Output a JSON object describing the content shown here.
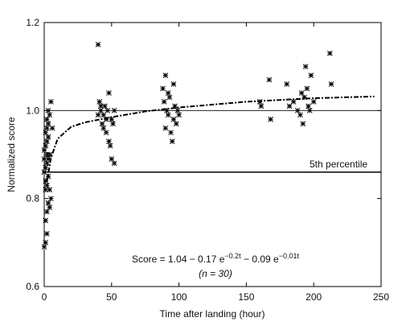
{
  "chart_data": {
    "type": "scatter",
    "xlabel": "Time after landing (hour)",
    "ylabel": "Normalized score",
    "xlim": [
      0,
      250
    ],
    "ylim": [
      0.6,
      1.2
    ],
    "xticks": [
      0,
      50,
      100,
      150,
      200,
      250
    ],
    "yticks": [
      0.6,
      0.8,
      {
        "value": 1,
        "label": "1.0"
      },
      1.2
    ],
    "hlines": [
      {
        "value": 1
      },
      {
        "value": 0.86,
        "label": "5th percentile"
      }
    ],
    "annotation": {
      "parts": [
        "Score = 1.04 − 0.17 e",
        "−0.2t",
        " − 0.09 e",
        "−0.01t"
      ],
      "note": "(n = 30)"
    },
    "series": [
      {
        "color": "#000000",
        "x": [
          0,
          1,
          2,
          1,
          2,
          3,
          4,
          5,
          1,
          2,
          3,
          0,
          1,
          2,
          3,
          4,
          0,
          1,
          2,
          3,
          1,
          2,
          3,
          2,
          4,
          3,
          5,
          6,
          1,
          4,
          0,
          2,
          40,
          40,
          41,
          42,
          43,
          44,
          45,
          46,
          47,
          48,
          48,
          49,
          50,
          50,
          51,
          52,
          52,
          46,
          44,
          42,
          88,
          89,
          90,
          90,
          91,
          92,
          93,
          94,
          95,
          96,
          97,
          98,
          99,
          100,
          92,
          96,
          160,
          161,
          167,
          168,
          180,
          182,
          185,
          188,
          190,
          191,
          192,
          193,
          194,
          195,
          196,
          197,
          198,
          200,
          212,
          213
        ],
        "values": [
          0.69,
          0.7,
          0.72,
          0.75,
          0.77,
          0.79,
          0.78,
          0.8,
          0.82,
          0.83,
          0.85,
          0.86,
          0.87,
          0.88,
          0.89,
          0.9,
          0.91,
          0.92,
          0.93,
          0.94,
          0.95,
          0.96,
          0.97,
          0.98,
          0.99,
          1.0,
          1.02,
          0.96,
          0.84,
          0.82,
          0.89,
          0.9,
          1.15,
          0.99,
          1.02,
          1.0,
          0.97,
          0.99,
          1.01,
          0.95,
          1.0,
          0.93,
          1.04,
          0.92,
          0.98,
          0.89,
          0.97,
          0.88,
          1.0,
          0.98,
          0.96,
          1.01,
          1.05,
          1.02,
          0.96,
          1.08,
          1.0,
          0.99,
          1.03,
          0.95,
          0.93,
          1.06,
          1.01,
          0.97,
          1.0,
          0.99,
          1.04,
          0.98,
          1.02,
          1.01,
          1.07,
          0.98,
          1.06,
          1.01,
          1.02,
          1.0,
          0.99,
          1.04,
          0.97,
          1.03,
          1.1,
          1.05,
          1.01,
          1.0,
          1.08,
          1.02,
          1.13,
          1.06
        ]
      },
      {
        "type": "line",
        "style": "dashed",
        "color": "#000000",
        "x": [
          2,
          5,
          10,
          20,
          30,
          50,
          75,
          100,
          150,
          200,
          245
        ],
        "values": [
          0.838,
          0.892,
          0.936,
          0.963,
          0.973,
          0.985,
          0.998,
          1.007,
          1.02,
          1.028,
          1.032
        ]
      }
    ]
  }
}
